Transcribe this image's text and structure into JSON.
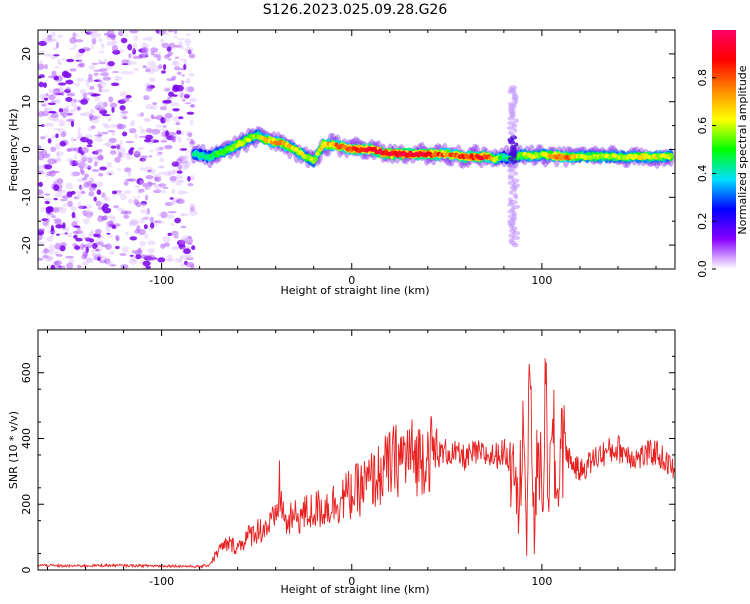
{
  "figure_title": "S126.2023.025.09.28.G26",
  "chart_data": [
    {
      "type": "heatmap",
      "title": "",
      "xlabel": "Height of straight line (km)",
      "ylabel": "Frequency (Hz)",
      "xlim": [
        -165,
        170
      ],
      "ylim": [
        -25,
        25
      ],
      "x_ticks": [
        -100,
        0,
        100
      ],
      "y_ticks": [
        -20,
        -10,
        0,
        10,
        20
      ],
      "colorbar": {
        "label": "Normalized spectral amplitude",
        "range": [
          0,
          1
        ],
        "ticks": [
          "0.0",
          "0.2",
          "0.4",
          "0.6",
          "0.8"
        ],
        "colors": [
          "#ffffff",
          "#8800ff",
          "#0000ff",
          "#00e0ff",
          "#00ff00",
          "#ffff00",
          "#ff8800",
          "#ff0000",
          "#ff0066"
        ]
      },
      "noise_region_x": [
        -165,
        -83
      ],
      "ridge": {
        "description_points_x": [
          -83,
          -75,
          -65,
          -55,
          -50,
          -45,
          -38,
          -30,
          -20,
          -15,
          -10,
          0,
          10,
          20,
          30,
          40,
          50,
          60,
          70,
          75,
          80,
          85,
          90,
          95,
          100,
          110,
          120,
          130,
          140,
          150,
          160,
          168
        ],
        "frequency_hz": [
          -1,
          -1.5,
          0,
          2,
          3,
          2,
          1.5,
          0,
          -2.5,
          1,
          1,
          0,
          0,
          -1,
          -1,
          -1,
          -1,
          -1.5,
          -1.5,
          -2,
          -1.5,
          -2,
          -1,
          -1.5,
          -1,
          -1.5,
          -1.5,
          -1.5,
          -1.5,
          -1.5,
          -1.5,
          -1.5
        ],
        "amplitude": [
          0.3,
          0.35,
          0.5,
          0.55,
          0.45,
          0.6,
          0.7,
          0.55,
          0.5,
          0.6,
          0.7,
          0.8,
          0.9,
          0.95,
          0.95,
          0.9,
          0.7,
          0.85,
          0.85,
          0.6,
          0.3,
          0.35,
          0.5,
          0.55,
          0.5,
          0.8,
          0.55,
          0.5,
          0.5,
          0.55,
          0.55,
          0.5
        ]
      },
      "spike_x": 85,
      "spike_freq_range": [
        -20,
        13
      ]
    },
    {
      "type": "line",
      "title": "",
      "xlabel": "Height of straight line (km)",
      "ylabel": "SNR (10 * v/v)",
      "xlim": [
        -165,
        170
      ],
      "ylim": [
        0,
        730
      ],
      "x_ticks": [
        -100,
        0,
        100
      ],
      "y_ticks": [
        0,
        200,
        400,
        600
      ],
      "color": "#e82020",
      "series": [
        {
          "x": [
            -165,
            -150,
            -130,
            -110,
            -90,
            -80,
            -75,
            -70,
            -65,
            -60,
            -55,
            -50,
            -45,
            -40,
            -38,
            -35,
            -30,
            -25,
            -20,
            -15,
            -10,
            -5,
            0,
            5,
            10,
            15,
            20,
            25,
            30,
            35,
            40,
            45,
            50,
            55,
            60,
            65,
            70,
            75,
            80,
            83,
            86,
            88,
            90,
            92,
            94,
            96,
            98,
            100,
            102,
            104,
            106,
            108,
            110,
            115,
            120,
            130,
            140,
            150,
            160,
            165,
            170
          ],
          "y": [
            15,
            12,
            14,
            13,
            12,
            10,
            15,
            60,
            80,
            70,
            100,
            120,
            130,
            150,
            250,
            140,
            160,
            170,
            180,
            190,
            200,
            220,
            230,
            250,
            270,
            290,
            320,
            340,
            350,
            340,
            360,
            350,
            360,
            350,
            340,
            355,
            350,
            345,
            360,
            330,
            450,
            120,
            610,
            50,
            700,
            60,
            450,
            200,
            480,
            250,
            400,
            200,
            420,
            330,
            300,
            350,
            370,
            340,
            360,
            330,
            300
          ]
        }
      ]
    }
  ]
}
